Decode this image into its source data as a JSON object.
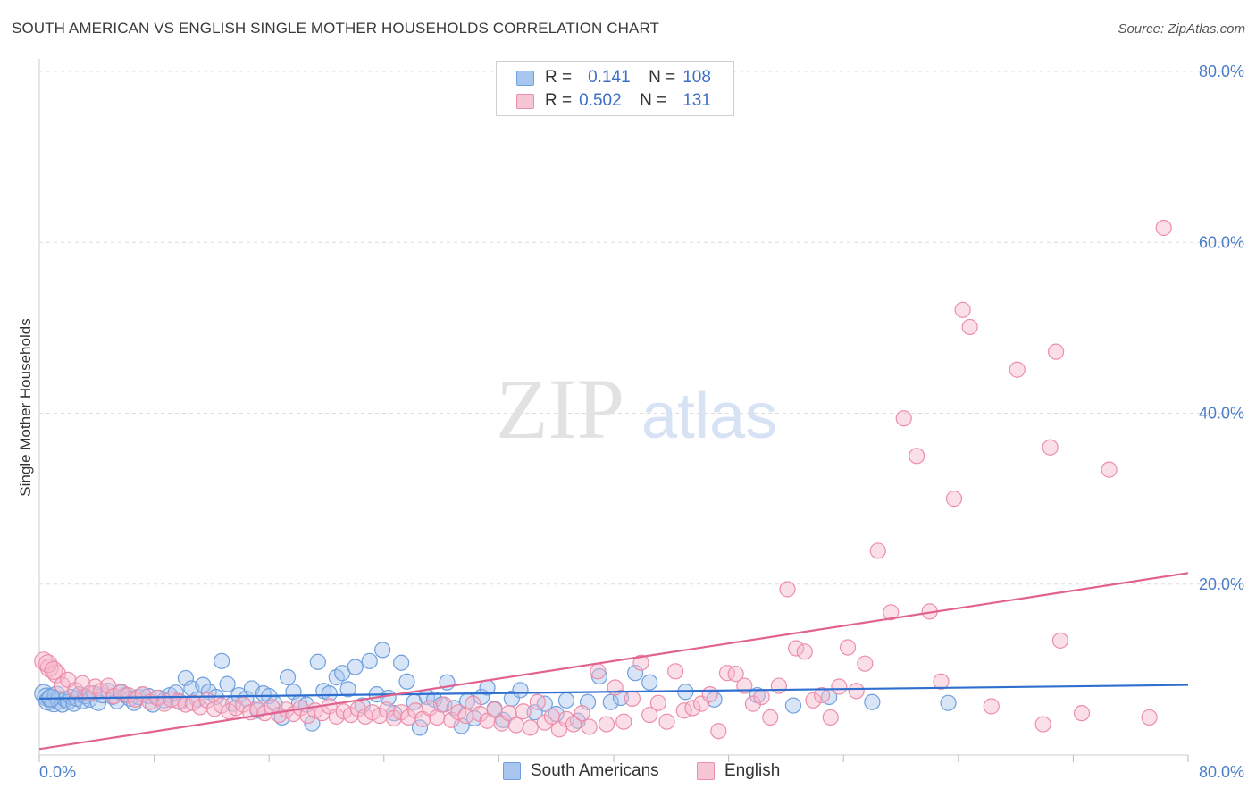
{
  "title": "SOUTH AMERICAN VS ENGLISH SINGLE MOTHER HOUSEHOLDS CORRELATION CHART",
  "source": "Source: ZipAtlas.com",
  "watermark": {
    "zip": "ZIP",
    "atlas": "atlas"
  },
  "legend": {
    "rows": [
      {
        "r_label": "R =",
        "r_value": "0.141",
        "n_label": "N =",
        "n_value": "108"
      },
      {
        "r_label": "R =",
        "r_value": "0.502",
        "n_label": "N =",
        "n_value": "131"
      }
    ]
  },
  "bottom_legend": {
    "south": "South Americans",
    "english": "English"
  },
  "colors": {
    "blue_fill": "#a9c6ee",
    "blue_stroke": "#6f9fde",
    "blue_line": "#2f6fd0",
    "pink_fill": "#f7b9cb",
    "pink_stroke": "#ec8eaa",
    "pink_line": "#e2628f",
    "tick": "#4a7cc9",
    "grid": "#dcdcdc"
  },
  "chart_data": {
    "type": "scatter",
    "title": "SOUTH AMERICAN VS ENGLISH SINGLE MOTHER HOUSEHOLDS CORRELATION CHART",
    "xlabel": "",
    "ylabel": "Single Mother Households",
    "xlim": [
      0,
      80
    ],
    "ylim": [
      0,
      80
    ],
    "x_ticks": [
      "0.0%",
      "80.0%"
    ],
    "y_ticks": [
      {
        "value": 20,
        "label": "20.0%"
      },
      {
        "value": 40,
        "label": "40.0%"
      },
      {
        "value": 60,
        "label": "60.0%"
      },
      {
        "value": 80,
        "label": "80.0%"
      }
    ],
    "grid": true,
    "series": [
      {
        "name": "South Americans",
        "R": 0.141,
        "N": 108,
        "trend": {
          "x0": 0,
          "y0": 6.6,
          "x1": 80,
          "y1": 8.2
        },
        "points": [
          [
            0.3,
            7.2
          ],
          [
            0.5,
            6.8
          ],
          [
            0.6,
            6.3
          ],
          [
            0.8,
            6.6
          ],
          [
            1.0,
            6.1
          ],
          [
            1.2,
            7.0
          ],
          [
            1.4,
            6.4
          ],
          [
            1.6,
            5.9
          ],
          [
            1.8,
            6.5
          ],
          [
            2.0,
            6.2
          ],
          [
            2.2,
            6.8
          ],
          [
            2.4,
            6.0
          ],
          [
            2.6,
            6.6
          ],
          [
            2.8,
            7.1
          ],
          [
            3.0,
            6.3
          ],
          [
            3.2,
            6.9
          ],
          [
            3.5,
            6.5
          ],
          [
            3.8,
            7.2
          ],
          [
            4.1,
            6.1
          ],
          [
            4.4,
            7.0
          ],
          [
            4.8,
            7.5
          ],
          [
            5.1,
            6.8
          ],
          [
            5.4,
            6.3
          ],
          [
            5.7,
            7.3
          ],
          [
            6.0,
            7.0
          ],
          [
            6.3,
            6.6
          ],
          [
            6.6,
            6.1
          ],
          [
            6.9,
            6.8
          ],
          [
            7.2,
            7.1
          ],
          [
            7.6,
            6.9
          ],
          [
            7.9,
            5.9
          ],
          [
            8.3,
            6.7
          ],
          [
            8.7,
            6.4
          ],
          [
            9.1,
            7.0
          ],
          [
            9.5,
            7.3
          ],
          [
            9.8,
            6.2
          ],
          [
            10.2,
            9.0
          ],
          [
            10.6,
            7.8
          ],
          [
            11.0,
            6.5
          ],
          [
            11.4,
            8.2
          ],
          [
            11.8,
            7.4
          ],
          [
            12.3,
            6.8
          ],
          [
            12.7,
            11.0
          ],
          [
            13.1,
            8.3
          ],
          [
            13.5,
            6.0
          ],
          [
            13.9,
            7.0
          ],
          [
            14.4,
            6.6
          ],
          [
            14.8,
            7.8
          ],
          [
            15.2,
            5.2
          ],
          [
            15.6,
            7.2
          ],
          [
            16.0,
            6.9
          ],
          [
            16.4,
            6.0
          ],
          [
            16.9,
            4.4
          ],
          [
            17.3,
            9.1
          ],
          [
            17.7,
            7.4
          ],
          [
            18.1,
            6.1
          ],
          [
            18.6,
            5.9
          ],
          [
            19.0,
            3.7
          ],
          [
            19.4,
            10.9
          ],
          [
            19.8,
            7.5
          ],
          [
            20.2,
            7.2
          ],
          [
            20.7,
            9.1
          ],
          [
            21.1,
            9.6
          ],
          [
            21.5,
            7.7
          ],
          [
            22.0,
            10.3
          ],
          [
            22.5,
            5.8
          ],
          [
            23.0,
            11.0
          ],
          [
            23.5,
            7.1
          ],
          [
            23.9,
            12.3
          ],
          [
            24.3,
            6.7
          ],
          [
            24.7,
            4.9
          ],
          [
            25.2,
            10.8
          ],
          [
            25.6,
            8.6
          ],
          [
            26.1,
            6.2
          ],
          [
            26.5,
            3.2
          ],
          [
            27.0,
            6.8
          ],
          [
            27.5,
            6.5
          ],
          [
            28.0,
            5.9
          ],
          [
            28.4,
            8.5
          ],
          [
            28.9,
            5.5
          ],
          [
            29.4,
            3.4
          ],
          [
            29.8,
            6.3
          ],
          [
            30.3,
            4.3
          ],
          [
            30.8,
            6.8
          ],
          [
            31.2,
            7.9
          ],
          [
            31.7,
            5.4
          ],
          [
            32.3,
            4.1
          ],
          [
            32.9,
            6.6
          ],
          [
            33.5,
            7.6
          ],
          [
            34.5,
            5.0
          ],
          [
            35.2,
            6.0
          ],
          [
            36.0,
            4.8
          ],
          [
            36.7,
            6.4
          ],
          [
            37.5,
            4.0
          ],
          [
            38.2,
            6.2
          ],
          [
            39.0,
            9.2
          ],
          [
            39.8,
            6.2
          ],
          [
            40.5,
            6.7
          ],
          [
            41.5,
            9.6
          ],
          [
            42.5,
            8.5
          ],
          [
            45.0,
            7.4
          ],
          [
            47.0,
            6.5
          ],
          [
            50.0,
            7.0
          ],
          [
            52.5,
            5.8
          ],
          [
            55.0,
            6.8
          ],
          [
            58.0,
            6.2
          ],
          [
            63.3,
            6.1
          ],
          [
            0.8,
            6.7
          ]
        ]
      },
      {
        "name": "English",
        "R": 0.502,
        "N": 131,
        "trend": {
          "x0": 0,
          "y0": 0.7,
          "x1": 80,
          "y1": 21.3
        },
        "points": [
          [
            0.3,
            11.0
          ],
          [
            0.7,
            10.2
          ],
          [
            1.2,
            9.5
          ],
          [
            1.6,
            8.2
          ],
          [
            2.0,
            8.8
          ],
          [
            2.5,
            7.6
          ],
          [
            3.0,
            8.4
          ],
          [
            3.5,
            7.2
          ],
          [
            3.9,
            8.0
          ],
          [
            4.3,
            7.5
          ],
          [
            4.8,
            8.1
          ],
          [
            5.2,
            6.9
          ],
          [
            5.7,
            7.4
          ],
          [
            6.2,
            7.0
          ],
          [
            6.7,
            6.5
          ],
          [
            7.2,
            7.1
          ],
          [
            7.7,
            6.2
          ],
          [
            8.2,
            6.7
          ],
          [
            8.7,
            6.0
          ],
          [
            9.2,
            6.5
          ],
          [
            9.7,
            6.3
          ],
          [
            10.2,
            5.9
          ],
          [
            10.7,
            6.1
          ],
          [
            11.2,
            5.6
          ],
          [
            11.7,
            6.4
          ],
          [
            12.2,
            5.4
          ],
          [
            12.7,
            5.8
          ],
          [
            13.2,
            5.1
          ],
          [
            13.7,
            5.5
          ],
          [
            14.2,
            5.9
          ],
          [
            14.7,
            5.0
          ],
          [
            15.2,
            5.4
          ],
          [
            15.7,
            4.9
          ],
          [
            16.2,
            5.6
          ],
          [
            16.7,
            4.7
          ],
          [
            17.2,
            5.3
          ],
          [
            17.7,
            4.8
          ],
          [
            18.2,
            5.5
          ],
          [
            18.7,
            4.6
          ],
          [
            19.2,
            5.2
          ],
          [
            19.7,
            4.9
          ],
          [
            20.2,
            5.7
          ],
          [
            20.7,
            4.5
          ],
          [
            21.2,
            5.1
          ],
          [
            21.7,
            4.7
          ],
          [
            22.2,
            5.4
          ],
          [
            22.7,
            4.5
          ],
          [
            23.2,
            5.0
          ],
          [
            23.7,
            4.6
          ],
          [
            24.2,
            5.3
          ],
          [
            24.7,
            4.3
          ],
          [
            25.2,
            5.0
          ],
          [
            25.7,
            4.4
          ],
          [
            26.2,
            5.2
          ],
          [
            26.7,
            4.2
          ],
          [
            27.2,
            5.5
          ],
          [
            27.7,
            4.4
          ],
          [
            28.2,
            5.9
          ],
          [
            28.7,
            4.1
          ],
          [
            29.2,
            5.0
          ],
          [
            29.7,
            4.6
          ],
          [
            30.2,
            6.0
          ],
          [
            30.7,
            4.8
          ],
          [
            31.2,
            4.0
          ],
          [
            31.7,
            5.3
          ],
          [
            32.2,
            3.7
          ],
          [
            32.7,
            4.9
          ],
          [
            33.2,
            3.5
          ],
          [
            33.7,
            5.1
          ],
          [
            34.2,
            3.2
          ],
          [
            34.7,
            6.2
          ],
          [
            35.2,
            3.8
          ],
          [
            35.7,
            4.5
          ],
          [
            36.2,
            3.0
          ],
          [
            36.7,
            4.2
          ],
          [
            37.2,
            3.6
          ],
          [
            37.8,
            4.9
          ],
          [
            38.3,
            3.3
          ],
          [
            38.9,
            9.8
          ],
          [
            39.5,
            3.6
          ],
          [
            40.1,
            7.9
          ],
          [
            40.7,
            3.9
          ],
          [
            41.3,
            6.6
          ],
          [
            41.9,
            10.8
          ],
          [
            42.5,
            4.7
          ],
          [
            43.1,
            6.1
          ],
          [
            43.7,
            3.9
          ],
          [
            44.3,
            9.8
          ],
          [
            44.9,
            5.2
          ],
          [
            45.5,
            5.5
          ],
          [
            46.1,
            6.0
          ],
          [
            46.7,
            7.1
          ],
          [
            47.3,
            2.8
          ],
          [
            47.9,
            9.6
          ],
          [
            48.5,
            9.5
          ],
          [
            49.1,
            8.1
          ],
          [
            49.7,
            6.0
          ],
          [
            50.3,
            6.8
          ],
          [
            50.9,
            4.4
          ],
          [
            51.5,
            8.1
          ],
          [
            52.1,
            19.4
          ],
          [
            52.7,
            12.5
          ],
          [
            53.3,
            12.1
          ],
          [
            53.9,
            6.4
          ],
          [
            54.5,
            7.0
          ],
          [
            55.1,
            4.4
          ],
          [
            55.7,
            8.0
          ],
          [
            56.3,
            12.6
          ],
          [
            56.9,
            7.5
          ],
          [
            57.5,
            10.7
          ],
          [
            58.4,
            23.9
          ],
          [
            59.3,
            16.7
          ],
          [
            60.2,
            39.4
          ],
          [
            61.1,
            35.0
          ],
          [
            62.0,
            16.8
          ],
          [
            62.8,
            8.6
          ],
          [
            63.7,
            30.0
          ],
          [
            64.3,
            52.1
          ],
          [
            64.8,
            50.1
          ],
          [
            66.3,
            5.7
          ],
          [
            68.1,
            45.1
          ],
          [
            69.9,
            3.6
          ],
          [
            70.4,
            36.0
          ],
          [
            70.8,
            47.2
          ],
          [
            71.1,
            13.4
          ],
          [
            72.6,
            4.9
          ],
          [
            74.5,
            33.4
          ],
          [
            77.3,
            4.4
          ],
          [
            78.3,
            61.7
          ],
          [
            0.6,
            10.7
          ],
          [
            1.0,
            9.9
          ]
        ]
      }
    ]
  }
}
